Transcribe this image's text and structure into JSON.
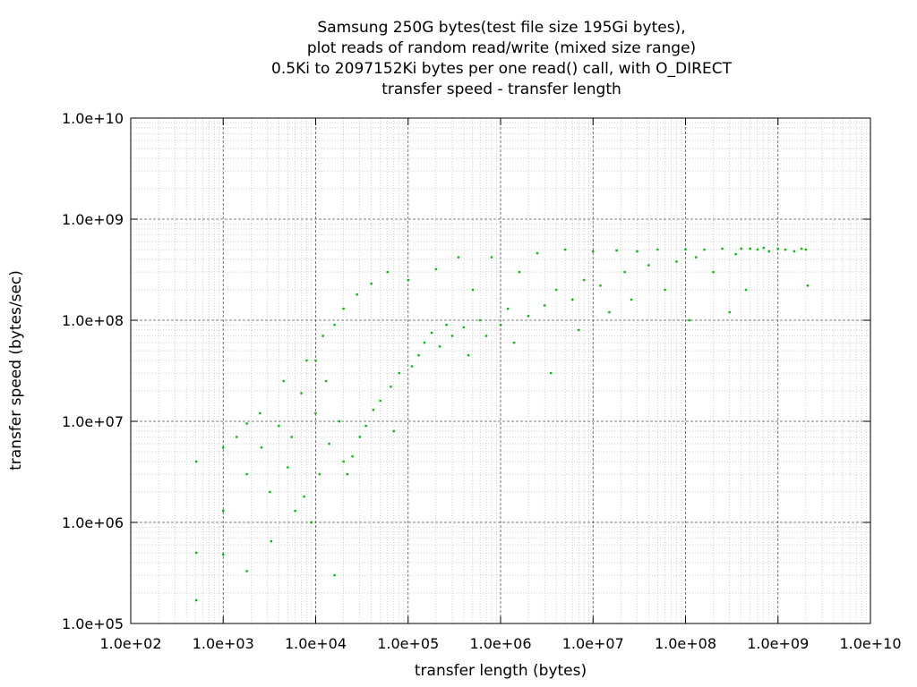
{
  "chart_data": {
    "type": "scatter",
    "title_lines": [
      "Samsung 250G bytes(test file size 195Gi bytes),",
      "plot reads of random read/write (mixed size range)",
      "0.5Ki to 2097152Ki bytes per one read() call, with O_DIRECT",
      "transfer speed - transfer length"
    ],
    "xlabel": "transfer length (bytes)",
    "ylabel": "transfer speed (bytes/sec)",
    "x_scale": "log",
    "y_scale": "log",
    "xlim": [
      100,
      10000000000
    ],
    "ylim": [
      100000,
      10000000000
    ],
    "x_ticks": [
      {
        "value": 100,
        "label": "1.0e+02"
      },
      {
        "value": 1000,
        "label": "1.0e+03"
      },
      {
        "value": 10000,
        "label": "1.0e+04"
      },
      {
        "value": 100000,
        "label": "1.0e+05"
      },
      {
        "value": 1000000,
        "label": "1.0e+06"
      },
      {
        "value": 10000000,
        "label": "1.0e+07"
      },
      {
        "value": 100000000,
        "label": "1.0e+08"
      },
      {
        "value": 1000000000,
        "label": "1.0e+09"
      },
      {
        "value": 10000000000,
        "label": "1.0e+10"
      }
    ],
    "y_ticks": [
      {
        "value": 100000,
        "label": "1.0e+05"
      },
      {
        "value": 1000000,
        "label": "1.0e+06"
      },
      {
        "value": 10000000,
        "label": "1.0e+07"
      },
      {
        "value": 100000000,
        "label": "1.0e+08"
      },
      {
        "value": 1000000000,
        "label": "1.0e+09"
      },
      {
        "value": 10000000000,
        "label": "1.0e+10"
      }
    ],
    "grid": true,
    "point_color": "#00c000",
    "series": [
      {
        "points": [
          [
            512,
            4000000
          ],
          [
            512,
            500000
          ],
          [
            512,
            170000
          ],
          [
            1000,
            5500000
          ],
          [
            1000,
            1300000
          ],
          [
            1000,
            480000
          ],
          [
            1400,
            7000000
          ],
          [
            1800,
            9500000
          ],
          [
            1800,
            3000000
          ],
          [
            1800,
            330000
          ],
          [
            2500,
            12000000
          ],
          [
            2600,
            5500000
          ],
          [
            3200,
            2000000
          ],
          [
            3300,
            650000
          ],
          [
            4000,
            9000000
          ],
          [
            4500,
            25000000
          ],
          [
            5000,
            3500000
          ],
          [
            5500,
            7000000
          ],
          [
            6000,
            1300000
          ],
          [
            7000,
            19000000
          ],
          [
            7500,
            1800000
          ],
          [
            8000,
            40000000
          ],
          [
            9000,
            1000000
          ],
          [
            10000,
            40000000
          ],
          [
            10000,
            12000000
          ],
          [
            11000,
            3000000
          ],
          [
            12000,
            70000000
          ],
          [
            13000,
            25000000
          ],
          [
            14000,
            6000000
          ],
          [
            16000,
            300000
          ],
          [
            16000,
            90000000
          ],
          [
            18000,
            10000000
          ],
          [
            20000,
            130000000
          ],
          [
            20000,
            4000000
          ],
          [
            22000,
            3000000
          ],
          [
            25000,
            4500000
          ],
          [
            28000,
            180000000
          ],
          [
            30000,
            7000000
          ],
          [
            35000,
            9000000
          ],
          [
            40000,
            230000000
          ],
          [
            42000,
            13000000
          ],
          [
            50000,
            16000000
          ],
          [
            60000,
            300000000
          ],
          [
            65000,
            22000000
          ],
          [
            70000,
            8000000
          ],
          [
            80000,
            30000000
          ],
          [
            100000,
            250000000
          ],
          [
            110000,
            35000000
          ],
          [
            130000,
            45000000
          ],
          [
            150000,
            60000000
          ],
          [
            180000,
            75000000
          ],
          [
            200000,
            320000000
          ],
          [
            220000,
            55000000
          ],
          [
            260000,
            90000000
          ],
          [
            300000,
            70000000
          ],
          [
            350000,
            420000000
          ],
          [
            400000,
            85000000
          ],
          [
            450000,
            45000000
          ],
          [
            500000,
            200000000
          ],
          [
            600000,
            100000000
          ],
          [
            700000,
            70000000
          ],
          [
            800000,
            420000000
          ],
          [
            1000000,
            90000000
          ],
          [
            1200000,
            130000000
          ],
          [
            1400000,
            60000000
          ],
          [
            1600000,
            300000000
          ],
          [
            2000000,
            110000000
          ],
          [
            2500000,
            460000000
          ],
          [
            3000000,
            140000000
          ],
          [
            3500000,
            30000000
          ],
          [
            4000000,
            200000000
          ],
          [
            5000000,
            500000000
          ],
          [
            6000000,
            160000000
          ],
          [
            7000000,
            80000000
          ],
          [
            8000000,
            250000000
          ],
          [
            10000000,
            480000000
          ],
          [
            12000000,
            220000000
          ],
          [
            15000000,
            120000000
          ],
          [
            18000000,
            490000000
          ],
          [
            22000000,
            300000000
          ],
          [
            26000000,
            160000000
          ],
          [
            30000000,
            480000000
          ],
          [
            40000000,
            350000000
          ],
          [
            50000000,
            500000000
          ],
          [
            60000000,
            200000000
          ],
          [
            80000000,
            380000000
          ],
          [
            100000000,
            500000000
          ],
          [
            110000000,
            100000000
          ],
          [
            130000000,
            420000000
          ],
          [
            160000000,
            500000000
          ],
          [
            200000000,
            300000000
          ],
          [
            250000000,
            510000000
          ],
          [
            300000000,
            120000000
          ],
          [
            350000000,
            450000000
          ],
          [
            400000000,
            510000000
          ],
          [
            450000000,
            200000000
          ],
          [
            500000000,
            510000000
          ],
          [
            600000000,
            500000000
          ],
          [
            700000000,
            520000000
          ],
          [
            800000000,
            480000000
          ],
          [
            1000000000,
            510000000
          ],
          [
            1200000000,
            500000000
          ],
          [
            1500000000,
            480000000
          ],
          [
            1800000000,
            510000000
          ],
          [
            2000000000,
            500000000
          ],
          [
            2100000000,
            220000000
          ]
        ]
      }
    ]
  }
}
